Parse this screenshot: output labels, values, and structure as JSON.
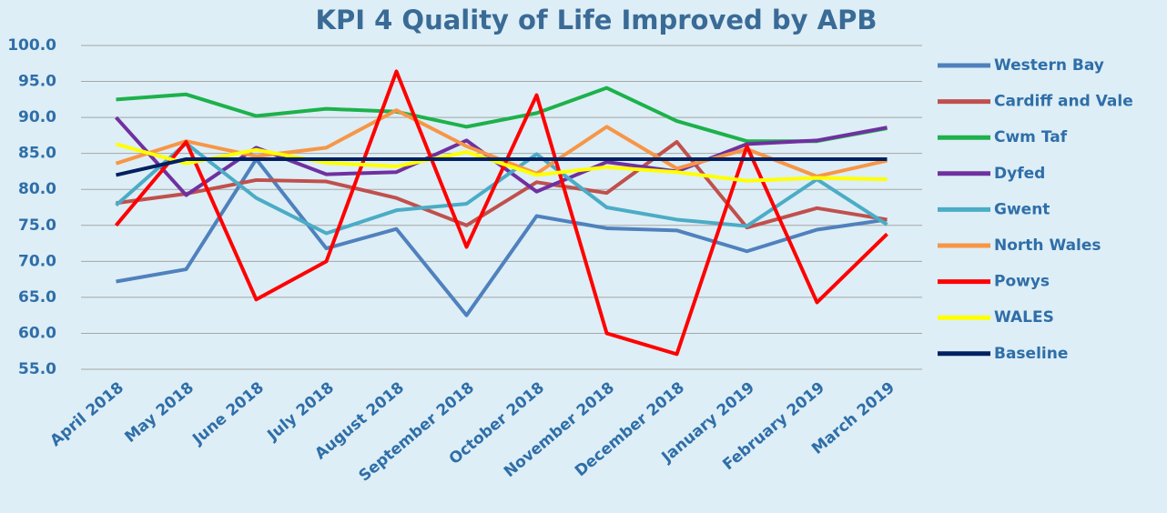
{
  "chart_data": {
    "type": "line",
    "title": "KPI 4 Quality of Life Improved by APB",
    "categories": [
      "April 2018",
      "May 2018",
      "June 2018",
      "July 2018",
      "August 2018",
      "September 2018",
      "October 2018",
      "November 2018",
      "December 2018",
      "January 2019",
      "February 2019",
      "March 2019"
    ],
    "ylim": [
      55,
      100
    ],
    "yticks": [
      {
        "value": 55,
        "label": "55.0"
      },
      {
        "value": 60,
        "label": "60.0"
      },
      {
        "value": 65,
        "label": "65.0"
      },
      {
        "value": 70,
        "label": "70.0"
      },
      {
        "value": 75,
        "label": "75.0"
      },
      {
        "value": 80,
        "label": "80.0"
      },
      {
        "value": 85,
        "label": "85.0"
      },
      {
        "value": 90,
        "label": "90.0"
      },
      {
        "value": 95,
        "label": "95.0"
      },
      {
        "value": 100,
        "label": "100.0"
      }
    ],
    "grid": true,
    "legend": "right",
    "series": [
      {
        "name": "Western Bay",
        "color": "#4f81bd",
        "values": [
          67.2,
          68.9,
          84.2,
          71.8,
          74.5,
          62.5,
          76.3,
          74.6,
          74.3,
          71.4,
          74.4,
          75.8
        ]
      },
      {
        "name": "Cardiff and Vale",
        "color": "#c0504d",
        "values": [
          78.1,
          79.4,
          81.3,
          81.1,
          78.8,
          75.0,
          81.0,
          79.5,
          86.6,
          74.7,
          77.4,
          75.8
        ]
      },
      {
        "name": "Cwm Taf",
        "color": "#1db14b",
        "values": [
          92.5,
          93.2,
          90.2,
          91.2,
          90.8,
          88.7,
          90.6,
          94.1,
          89.5,
          86.7,
          86.7,
          88.5
        ]
      },
      {
        "name": "Dyfed",
        "color": "#7030a0",
        "values": [
          90.0,
          79.2,
          85.8,
          82.1,
          82.4,
          86.8,
          79.7,
          83.8,
          82.5,
          86.3,
          86.8,
          88.6
        ]
      },
      {
        "name": "Gwent",
        "color": "#4bacc6",
        "values": [
          77.8,
          86.4,
          78.8,
          73.9,
          77.1,
          78.0,
          84.9,
          77.5,
          75.8,
          74.9,
          81.4,
          75.1
        ]
      },
      {
        "name": "North Wales",
        "color": "#f79646",
        "values": [
          83.6,
          86.7,
          84.6,
          85.8,
          91.0,
          86.0,
          82.2,
          88.7,
          82.9,
          85.6,
          81.8,
          84.0
        ]
      },
      {
        "name": "Powys",
        "color": "#ff0000",
        "values": [
          75.0,
          86.6,
          64.7,
          70.0,
          96.4,
          72.0,
          93.1,
          60.0,
          57.1,
          86.0,
          64.3,
          73.8
        ]
      },
      {
        "name": "WALES",
        "color": "#ffff00",
        "values": [
          86.3,
          83.6,
          85.5,
          83.7,
          83.2,
          85.2,
          82.0,
          83.1,
          82.4,
          81.2,
          81.6,
          81.4
        ]
      },
      {
        "name": "Baseline",
        "color": "#002060",
        "values": [
          82.0,
          84.2,
          84.2,
          84.2,
          84.2,
          84.2,
          84.2,
          84.2,
          84.2,
          84.2,
          84.2,
          84.2
        ]
      }
    ]
  }
}
